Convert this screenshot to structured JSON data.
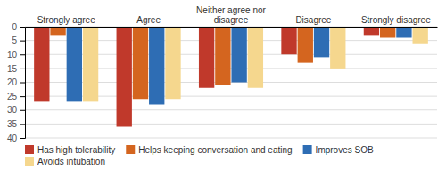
{
  "chart_data": {
    "type": "bar",
    "categories": [
      "Strongly agree",
      "Agree",
      "Neither agree nor disagree",
      "Disagree",
      "Strongly disagree"
    ],
    "series": [
      {
        "name": "Has high tolerability",
        "color": "#C0392B",
        "values": [
          27,
          36,
          22,
          10,
          3
        ]
      },
      {
        "name": "Helps keeping conversation and eating",
        "color": "#D4651F",
        "values": [
          3,
          26,
          21,
          13,
          4
        ]
      },
      {
        "name": "Improves SOB",
        "color": "#2E6DB4",
        "values": [
          27,
          28,
          20,
          11,
          4
        ]
      },
      {
        "name": "Avoids intubation",
        "color": "#F5D78E",
        "values": [
          27,
          26,
          22,
          15,
          6
        ]
      }
    ],
    "ylim": [
      40,
      0
    ],
    "yticks": [
      0,
      5,
      10,
      15,
      20,
      25,
      30,
      35,
      40
    ],
    "grid": true,
    "legend": "bottom"
  }
}
